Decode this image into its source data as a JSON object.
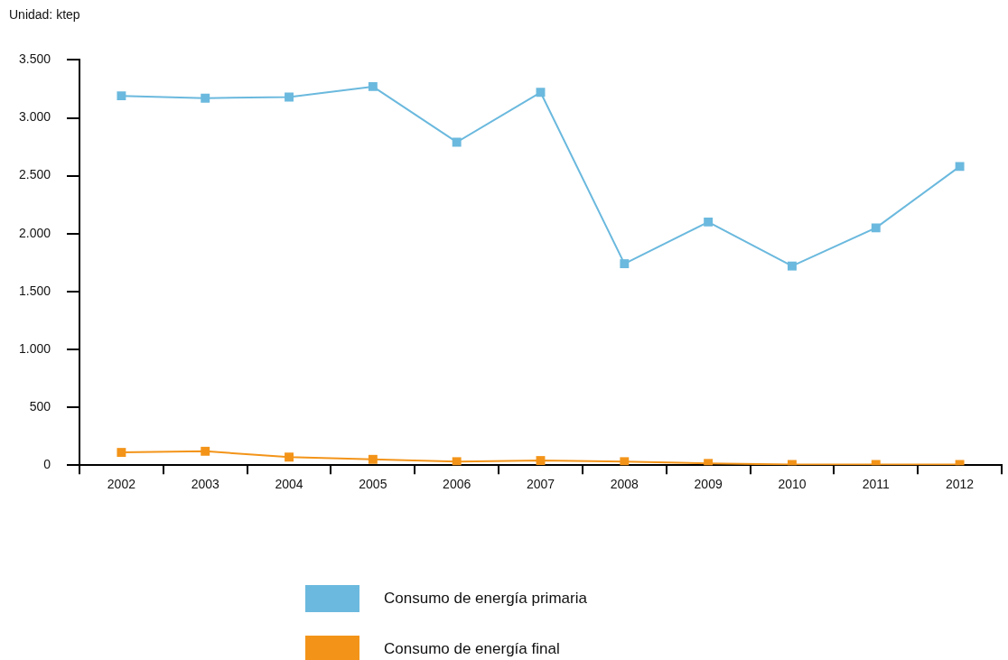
{
  "chart_data": {
    "type": "line",
    "ylabel": "Unidad: ktep",
    "categories": [
      "2002",
      "2003",
      "2004",
      "2005",
      "2006",
      "2007",
      "2008",
      "2009",
      "2010",
      "2011",
      "2012"
    ],
    "series": [
      {
        "name": "Consumo de energía primaria",
        "color": "#6bb9de",
        "values": [
          3190,
          3170,
          3180,
          3270,
          2790,
          3220,
          1740,
          2100,
          1720,
          2050,
          2580
        ]
      },
      {
        "name": "Consumo de energía final",
        "color": "#f39419",
        "values": [
          110,
          120,
          70,
          50,
          30,
          40,
          30,
          15,
          5,
          5,
          5
        ]
      }
    ],
    "ylim": [
      0,
      3500
    ],
    "yticks": [
      0,
      500,
      {
        "value": 1000,
        "label": "1.000"
      },
      {
        "value": 1500,
        "label": "1.500"
      },
      {
        "value": 2000,
        "label": "2.000"
      },
      {
        "value": 2500,
        "label": "2.500"
      },
      {
        "value": 3000,
        "label": "3.000"
      },
      {
        "value": 3500,
        "label": "3.500"
      }
    ],
    "grid": false,
    "legend": "bottom",
    "marker": "square",
    "line_style": "solid"
  }
}
